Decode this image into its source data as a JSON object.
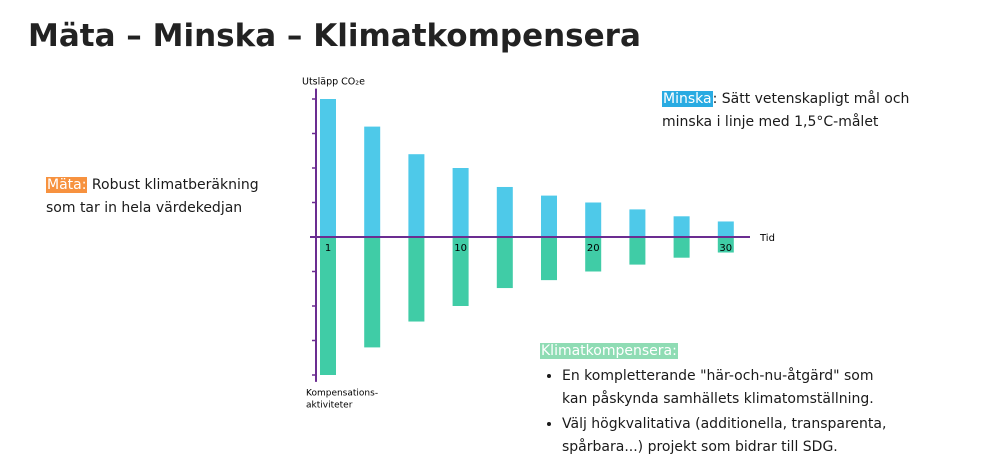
{
  "title": "Mäta – Minska – Klimatkompensera",
  "chart_data": {
    "type": "bar",
    "y_label": "Utsläpp CO₂e",
    "y_label_negative": [
      "Kompensations-",
      "aktiviteter"
    ],
    "x_label": "Tid",
    "categories": [
      "1",
      null,
      null,
      "10",
      null,
      null,
      "20",
      null,
      null,
      "30"
    ],
    "series": [
      {
        "color": "#4ec9e9",
        "values": [
          4.0,
          3.2,
          2.4,
          2.0,
          1.45,
          1.2,
          1.0,
          0.8,
          0.6,
          0.45
        ]
      },
      {
        "color": "#40cca6",
        "values": [
          -4.0,
          -3.2,
          -2.45,
          -2.0,
          -1.48,
          -1.25,
          -1.0,
          -0.8,
          -0.6,
          -0.45
        ]
      }
    ],
    "ylim": [
      -4.2,
      4.3
    ],
    "yticks": [
      -4,
      -3,
      -2,
      -1,
      0,
      1,
      2,
      3,
      4
    ],
    "axis_color": "#6b2d91"
  },
  "annotations": {
    "minska": {
      "highlight": "Minska",
      "highlight_color": "#29abe2",
      "text": ": Sätt vetenskapligt mål och minska i linje med 1,5°C-målet"
    },
    "mata": {
      "highlight": "Mäta:",
      "highlight_color": "#f7923f",
      "text": " Robust klimatberäkning som tar in hela värdekedjan"
    },
    "klimat": {
      "highlight": "Klimatkompensera:",
      "highlight_color": "#8fdcb4",
      "bullets": [
        "En kompletterande \"här-och-nu-åtgärd\" som kan påskynda samhällets klimatomställning.",
        "Välj högkvalitativa (additionella, transparenta, spårbara...) projekt som bidrar till SDG."
      ]
    }
  }
}
